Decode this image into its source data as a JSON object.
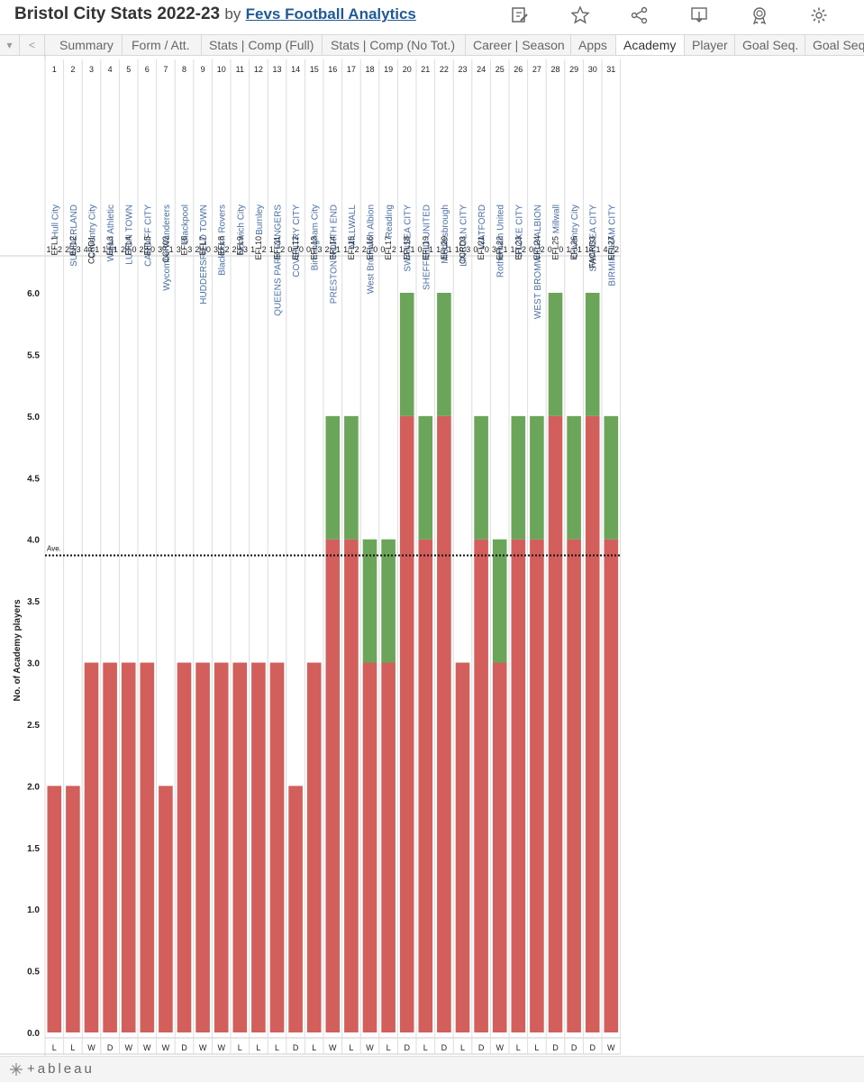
{
  "header": {
    "title": "Bristol City Stats 2022-23",
    "by": "by",
    "author": "Fevs Football Analytics",
    "icons": [
      "edit-icon",
      "star-icon",
      "share-icon",
      "download-icon",
      "award-icon",
      "settings-icon"
    ]
  },
  "tabs": {
    "items": [
      "Summary",
      "Form / Att.",
      "Stats | Comp (Full)",
      "Stats | Comp (No Tot.)",
      "Career | Season",
      "Apps",
      "Academy",
      "Player",
      "Goal Seq.",
      "Goal Seq"
    ],
    "active": "Academy"
  },
  "footer": {
    "logo": "+ableau"
  },
  "colors": {
    "red": "#d35f5c",
    "green": "#6aa55a",
    "axis_text": "#222222",
    "team_text": "#4a6fa5"
  },
  "chart_data": {
    "type": "bar",
    "ylabel": "No. of Academy players",
    "ylim": [
      0,
      6.2
    ],
    "yticks": [
      "0.0",
      "0.5",
      "1.0",
      "1.5",
      "2.0",
      "2.5",
      "3.0",
      "3.5",
      "4.0",
      "4.5",
      "5.0",
      "5.5",
      "6.0"
    ],
    "average": {
      "label": "Ave.",
      "value": 3.87
    },
    "games": [
      {
        "n": "1",
        "team": "Hull City",
        "comp": "EFL1",
        "score": "1 : 2",
        "result": "L",
        "red": 2,
        "green": 0
      },
      {
        "n": "2",
        "team": "SUNDERLAND",
        "comp": "EFL2",
        "score": "2 : 3",
        "result": "L",
        "red": 2,
        "green": 0
      },
      {
        "n": "3",
        "team": "Coventry City",
        "comp": "CCRD1",
        "score": "4 : 1",
        "result": "W",
        "red": 3,
        "green": 0
      },
      {
        "n": "4",
        "team": "Wigan Athletic",
        "comp": "EFL3",
        "score": "1 : 1",
        "result": "D",
        "red": 3,
        "green": 0
      },
      {
        "n": "5",
        "team": "LUTON TOWN",
        "comp": "EFL4",
        "score": "2 : 0",
        "result": "W",
        "red": 3,
        "green": 0
      },
      {
        "n": "6",
        "team": "CARDIFF CITY",
        "comp": "EFL5",
        "score": "2 : 0",
        "result": "W",
        "red": 3,
        "green": 0
      },
      {
        "n": "7",
        "team": "Wycombe Wanderers",
        "comp": "CCR02",
        "score": "3 : 1",
        "result": "W",
        "red": 2,
        "green": 0
      },
      {
        "n": "8",
        "team": "Blackpool",
        "comp": "EFL6",
        "score": "3 : 3",
        "result": "D",
        "red": 3,
        "green": 0
      },
      {
        "n": "9",
        "team": "HUDDERSFIELD TOWN",
        "comp": "EFL7",
        "score": "2 : 0",
        "result": "W",
        "red": 3,
        "green": 0
      },
      {
        "n": "10",
        "team": "Blackburn Rovers",
        "comp": "EFL8",
        "score": "3 : 2",
        "result": "W",
        "red": 3,
        "green": 0
      },
      {
        "n": "11",
        "team": "Norwich City",
        "comp": "EFL9",
        "score": "2 : 3",
        "result": "L",
        "red": 3,
        "green": 0
      },
      {
        "n": "12",
        "team": "Burnley",
        "comp": "EFL10",
        "score": "1 : 2",
        "result": "L",
        "red": 3,
        "green": 0
      },
      {
        "n": "13",
        "team": "QUEENS PARK RANGERS",
        "comp": "EFL11",
        "score": "1 : 2",
        "result": "L",
        "red": 3,
        "green": 0
      },
      {
        "n": "14",
        "team": "COVENTRY CITY",
        "comp": "EFL12",
        "score": "0 : 0",
        "result": "D",
        "red": 2,
        "green": 0
      },
      {
        "n": "15",
        "team": "Birmingham City",
        "comp": "EFL13",
        "score": "0 : 3",
        "result": "L",
        "red": 3,
        "green": 0
      },
      {
        "n": "16",
        "team": "PRESTON NORTH END",
        "comp": "EFL14",
        "score": "2 : 1",
        "result": "W",
        "red": 4,
        "green": 1
      },
      {
        "n": "17",
        "team": "MILLWALL",
        "comp": "EFL15",
        "score": "1 : 2",
        "result": "L",
        "red": 4,
        "green": 1
      },
      {
        "n": "18",
        "team": "West Bromwich Albion",
        "comp": "EFL16",
        "score": "2 : 0",
        "result": "W",
        "red": 3,
        "green": 1
      },
      {
        "n": "19",
        "team": "Reading",
        "comp": "EFL17",
        "score": "0 : 2",
        "result": "L",
        "red": 3,
        "green": 1
      },
      {
        "n": "20",
        "team": "SWANSEA CITY",
        "comp": "EFL18",
        "score": "1 : 1",
        "result": "D",
        "red": 5,
        "green": 1
      },
      {
        "n": "21",
        "team": "SHEFFIELD UNITED",
        "comp": "EFL19",
        "score": "0 : 1",
        "result": "L",
        "red": 4,
        "green": 1
      },
      {
        "n": "22",
        "team": "Middlesbrough",
        "comp": "EFL20",
        "score": "1 : 1",
        "result": "D",
        "red": 5,
        "green": 1
      },
      {
        "n": "23",
        "team": "LINCOLN CITY",
        "comp": "CCRD3",
        "score": "1 : 3",
        "result": "L",
        "red": 3,
        "green": 0
      },
      {
        "n": "24",
        "team": "WATFORD",
        "comp": "EFL21",
        "score": "0 : 0",
        "result": "D",
        "red": 4,
        "green": 1
      },
      {
        "n": "25",
        "team": "Rotherham United",
        "comp": "EFL22",
        "score": "3 : 1",
        "result": "W",
        "red": 3,
        "green": 1
      },
      {
        "n": "26",
        "team": "STOKE CITY",
        "comp": "EFL23",
        "score": "1 : 2",
        "result": "L",
        "red": 4,
        "green": 1
      },
      {
        "n": "27",
        "team": "WEST BROMWICH ALBION",
        "comp": "EFL24",
        "score": "0 : 2",
        "result": "L",
        "red": 4,
        "green": 1
      },
      {
        "n": "28",
        "team": "Millwall",
        "comp": "EFL25",
        "score": "0 : 0",
        "result": "D",
        "red": 5,
        "green": 1
      },
      {
        "n": "29",
        "team": "Coventry City",
        "comp": "EFL26",
        "score": "1 : 1",
        "result": "D",
        "red": 4,
        "green": 1
      },
      {
        "n": "30",
        "team": "SWANSEA CITY",
        "comp": "FACRD3",
        "score": "1 : 1",
        "result": "D",
        "red": 5,
        "green": 1
      },
      {
        "n": "31",
        "team": "BIRMINGHAM CITY",
        "comp": "EFL27",
        "score": "4 : 2",
        "result": "W",
        "red": 4,
        "green": 1
      }
    ]
  }
}
